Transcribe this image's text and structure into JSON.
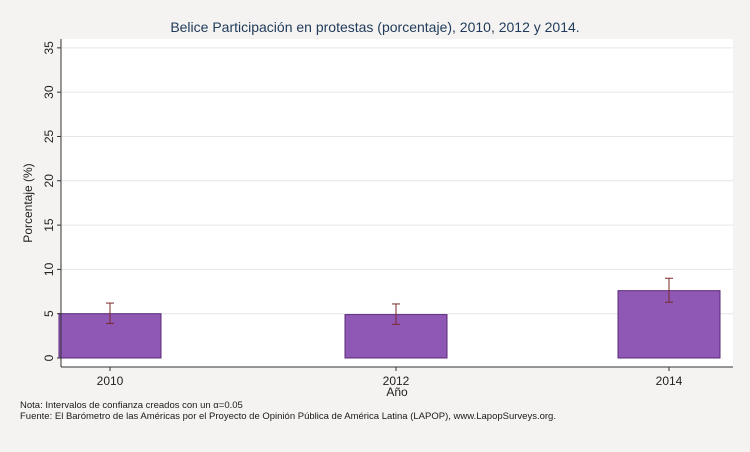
{
  "chart_data": {
    "type": "bar",
    "title": "Belice Participación en protestas (porcentaje), 2010, 2012 y 2014.",
    "xlabel": "Año",
    "ylabel": "Porcentaje (%)",
    "categories": [
      "2010",
      "2012",
      "2014"
    ],
    "values": [
      5.0,
      4.9,
      7.6
    ],
    "ci_lower": [
      3.9,
      3.8,
      6.3
    ],
    "ci_upper": [
      6.2,
      6.1,
      9.0
    ],
    "ylim": [
      0,
      36
    ],
    "yticks": [
      0,
      5,
      10,
      15,
      20,
      25,
      30,
      35
    ],
    "grid": true,
    "bar_color": "#8e58b4",
    "bar_edge_color": "#5b2a7a",
    "errorbar_color": "#7a2a2a",
    "gridline_color": "#e6e6e6"
  },
  "footnotes": {
    "nota": "Nota: Intervalos de confianza creados con un α=0.05",
    "fuente": "Fuente: El Barómetro de las Américas por el Proyecto de Opinión Pública de América Latina (LAPOP), www.LapopSurveys.org."
  }
}
